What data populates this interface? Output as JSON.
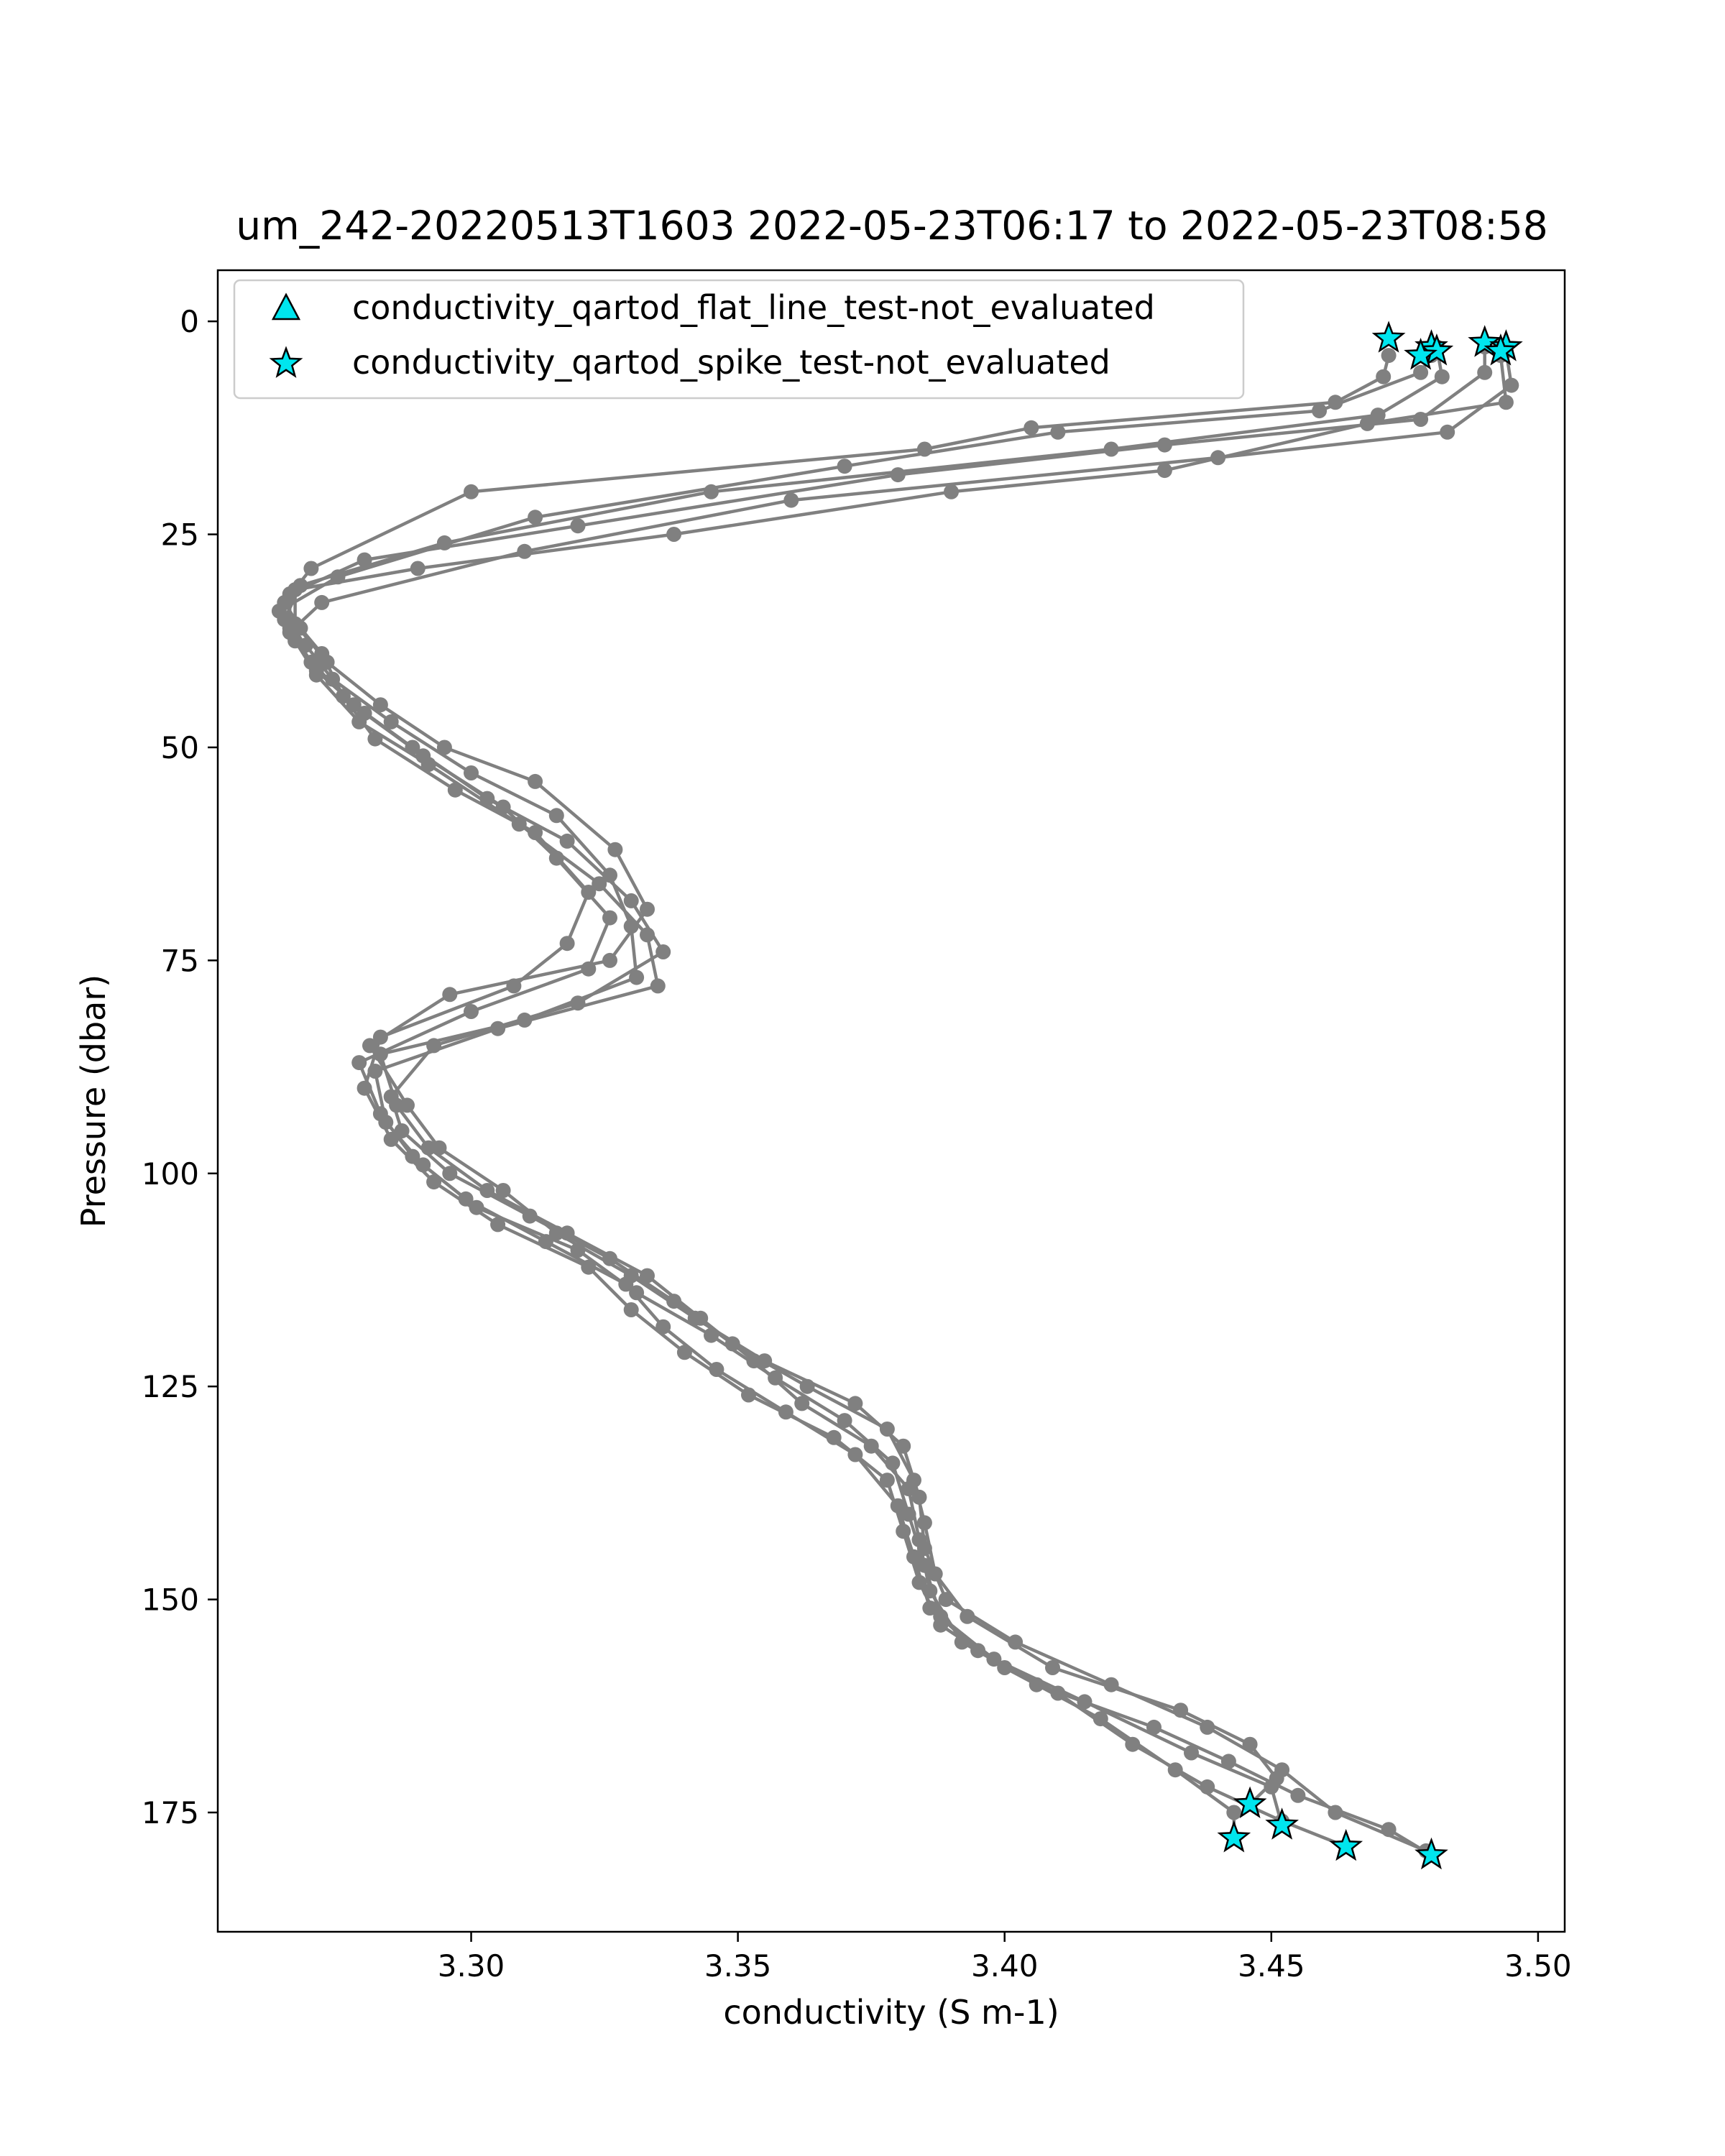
{
  "chart_data": {
    "type": "scatter",
    "title": "um_242-20220513T1603 2022-05-23T06:17 to 2022-05-23T08:58",
    "xlabel": "conductivity (S m-1)",
    "ylabel": "Pressure (dbar)",
    "xlim": [
      3.2525,
      3.505
    ],
    "ylim": [
      189,
      -6
    ],
    "y_inverted": true,
    "grid": false,
    "legend_position": "top-left",
    "xticks": [
      3.3,
      3.35,
      3.4,
      3.45,
      3.5
    ],
    "xtick_labels": [
      "3.30",
      "3.35",
      "3.40",
      "3.45",
      "3.50"
    ],
    "yticks": [
      0,
      25,
      50,
      75,
      100,
      125,
      150,
      175
    ],
    "ytick_labels": [
      "0",
      "25",
      "50",
      "75",
      "100",
      "125",
      "150",
      "175"
    ],
    "profile_color": "#808080",
    "marker_color": "#00e5ee",
    "legend": [
      {
        "label": "conductivity_qartod_flat_line_test-not_evaluated",
        "marker": "triangle"
      },
      {
        "label": "conductivity_qartod_spike_test-not_evaluated",
        "marker": "star"
      }
    ],
    "series": [
      {
        "points": [
          [
            3.472,
            4.0
          ],
          [
            3.471,
            6.5
          ],
          [
            3.462,
            9.5
          ],
          [
            3.405,
            12.5
          ],
          [
            3.385,
            15.0
          ],
          [
            3.3,
            20.0
          ],
          [
            3.27,
            29.0
          ],
          [
            3.265,
            33.0
          ],
          [
            3.268,
            36.0
          ],
          [
            3.272,
            39.0
          ],
          [
            3.276,
            44.0
          ],
          [
            3.282,
            49.0
          ],
          [
            3.297,
            55.0
          ],
          [
            3.312,
            60.0
          ],
          [
            3.322,
            67.0
          ],
          [
            3.318,
            73.0
          ],
          [
            3.308,
            78.0
          ],
          [
            3.283,
            84.0
          ],
          [
            3.28,
            90.0
          ],
          [
            3.285,
            96.0
          ],
          [
            3.293,
            101.0
          ],
          [
            3.305,
            106.0
          ],
          [
            3.322,
            111.0
          ],
          [
            3.33,
            116.0
          ],
          [
            3.34,
            121.0
          ],
          [
            3.352,
            126.0
          ],
          [
            3.368,
            131.0
          ],
          [
            3.378,
            136.0
          ],
          [
            3.381,
            142.0
          ],
          [
            3.384,
            148.0
          ],
          [
            3.388,
            153.0
          ],
          [
            3.4,
            158.0
          ],
          [
            3.418,
            164.0
          ],
          [
            3.432,
            170.0
          ],
          [
            3.443,
            175.0
          ],
          [
            3.443,
            178.0
          ]
        ]
      },
      {
        "points": [
          [
            3.48,
            4.0
          ],
          [
            3.478,
            6.0
          ],
          [
            3.459,
            10.5
          ],
          [
            3.41,
            13.0
          ],
          [
            3.37,
            17.0
          ],
          [
            3.312,
            23.0
          ],
          [
            3.275,
            30.0
          ],
          [
            3.264,
            34.0
          ],
          [
            3.267,
            37.5
          ],
          [
            3.271,
            41.0
          ],
          [
            3.28,
            46.0
          ],
          [
            3.291,
            51.0
          ],
          [
            3.306,
            57.0
          ],
          [
            3.316,
            63.0
          ],
          [
            3.326,
            70.0
          ],
          [
            3.322,
            76.0
          ],
          [
            3.3,
            81.0
          ],
          [
            3.279,
            87.0
          ],
          [
            3.283,
            93.0
          ],
          [
            3.289,
            98.0
          ],
          [
            3.299,
            103.0
          ],
          [
            3.314,
            108.0
          ],
          [
            3.329,
            113.0
          ],
          [
            3.336,
            118.0
          ],
          [
            3.346,
            123.0
          ],
          [
            3.359,
            128.0
          ],
          [
            3.372,
            133.0
          ],
          [
            3.38,
            139.0
          ],
          [
            3.383,
            145.0
          ],
          [
            3.386,
            151.0
          ],
          [
            3.395,
            156.0
          ],
          [
            3.41,
            161.0
          ],
          [
            3.424,
            167.0
          ],
          [
            3.438,
            172.0
          ],
          [
            3.452,
            176.0
          ],
          [
            3.464,
            179.0
          ]
        ]
      },
      {
        "points": [
          [
            3.481,
            3.0
          ],
          [
            3.482,
            6.5
          ],
          [
            3.47,
            11.0
          ],
          [
            3.42,
            15.0
          ],
          [
            3.345,
            20.0
          ],
          [
            3.295,
            26.0
          ],
          [
            3.268,
            31.0
          ],
          [
            3.265,
            35.0
          ],
          [
            3.269,
            38.0
          ],
          [
            3.274,
            42.0
          ],
          [
            3.285,
            47.0
          ],
          [
            3.3,
            53.0
          ],
          [
            3.316,
            58.0
          ],
          [
            3.326,
            65.0
          ],
          [
            3.33,
            71.0
          ],
          [
            3.331,
            77.0
          ],
          [
            3.31,
            82.0
          ],
          [
            3.283,
            86.0
          ],
          [
            3.286,
            92.0
          ],
          [
            3.292,
            97.0
          ],
          [
            3.303,
            102.0
          ],
          [
            3.318,
            107.0
          ],
          [
            3.333,
            112.0
          ],
          [
            3.343,
            117.0
          ],
          [
            3.353,
            122.0
          ],
          [
            3.362,
            127.0
          ],
          [
            3.375,
            132.0
          ],
          [
            3.382,
            137.0
          ],
          [
            3.384,
            143.0
          ],
          [
            3.386,
            149.0
          ],
          [
            3.392,
            155.0
          ],
          [
            3.406,
            160.0
          ],
          [
            3.428,
            165.0
          ],
          [
            3.442,
            169.0
          ],
          [
            3.455,
            173.0
          ],
          [
            3.472,
            177.0
          ],
          [
            3.48,
            180.0
          ]
        ]
      },
      {
        "points": [
          [
            3.49,
            3.0
          ],
          [
            3.49,
            6.0
          ],
          [
            3.478,
            11.5
          ],
          [
            3.43,
            14.5
          ],
          [
            3.38,
            18.0
          ],
          [
            3.32,
            24.0
          ],
          [
            3.28,
            28.0
          ],
          [
            3.266,
            32.0
          ],
          [
            3.266,
            36.0
          ],
          [
            3.27,
            40.0
          ],
          [
            3.278,
            45.0
          ],
          [
            3.289,
            50.0
          ],
          [
            3.303,
            56.0
          ],
          [
            3.318,
            61.0
          ],
          [
            3.33,
            68.0
          ],
          [
            3.336,
            74.0
          ],
          [
            3.32,
            80.0
          ],
          [
            3.293,
            85.0
          ],
          [
            3.285,
            91.0
          ],
          [
            3.287,
            95.0
          ],
          [
            3.296,
            100.0
          ],
          [
            3.311,
            105.0
          ],
          [
            3.326,
            110.0
          ],
          [
            3.338,
            115.0
          ],
          [
            3.349,
            120.0
          ],
          [
            3.363,
            125.0
          ],
          [
            3.378,
            130.0
          ],
          [
            3.383,
            136.0
          ],
          [
            3.385,
            141.0
          ],
          [
            3.387,
            147.0
          ],
          [
            3.393,
            152.0
          ],
          [
            3.409,
            158.0
          ],
          [
            3.433,
            163.0
          ],
          [
            3.446,
            167.0
          ],
          [
            3.451,
            171.0
          ],
          [
            3.446,
            174.0
          ]
        ]
      },
      {
        "points": [
          [
            3.494,
            3.5
          ],
          [
            3.495,
            7.5
          ],
          [
            3.483,
            13.0
          ],
          [
            3.44,
            16.0
          ],
          [
            3.36,
            21.0
          ],
          [
            3.31,
            27.0
          ],
          [
            3.272,
            33.0
          ],
          [
            3.266,
            36.5
          ],
          [
            3.271,
            41.5
          ],
          [
            3.279,
            47.0
          ],
          [
            3.292,
            52.0
          ],
          [
            3.309,
            59.0
          ],
          [
            3.324,
            66.0
          ],
          [
            3.333,
            72.0
          ],
          [
            3.335,
            78.0
          ],
          [
            3.305,
            83.0
          ],
          [
            3.282,
            88.0
          ],
          [
            3.284,
            94.0
          ],
          [
            3.291,
            99.0
          ],
          [
            3.301,
            104.0
          ],
          [
            3.32,
            109.0
          ],
          [
            3.331,
            114.0
          ],
          [
            3.345,
            119.0
          ],
          [
            3.357,
            124.0
          ],
          [
            3.37,
            129.0
          ],
          [
            3.379,
            134.0
          ],
          [
            3.382,
            140.0
          ],
          [
            3.385,
            146.0
          ],
          [
            3.388,
            152.0
          ],
          [
            3.398,
            157.0
          ],
          [
            3.415,
            162.0
          ],
          [
            3.435,
            168.0
          ],
          [
            3.45,
            172.0
          ],
          [
            3.452,
            176.5
          ]
        ]
      },
      {
        "points": [
          [
            3.493,
            4.0
          ],
          [
            3.494,
            9.5
          ],
          [
            3.468,
            12.0
          ],
          [
            3.43,
            17.5
          ],
          [
            3.39,
            20.0
          ],
          [
            3.338,
            25.0
          ],
          [
            3.29,
            29.0
          ],
          [
            3.267,
            31.5
          ],
          [
            3.267,
            35.5
          ],
          [
            3.273,
            40.0
          ],
          [
            3.283,
            45.0
          ],
          [
            3.295,
            50.0
          ],
          [
            3.312,
            54.0
          ],
          [
            3.327,
            62.0
          ],
          [
            3.333,
            69.0
          ],
          [
            3.326,
            75.0
          ],
          [
            3.296,
            79.0
          ],
          [
            3.281,
            85.0
          ],
          [
            3.288,
            92.0
          ],
          [
            3.294,
            97.0
          ],
          [
            3.306,
            102.0
          ],
          [
            3.316,
            107.0
          ],
          [
            3.33,
            112.0
          ],
          [
            3.342,
            117.0
          ],
          [
            3.355,
            122.0
          ],
          [
            3.372,
            127.0
          ],
          [
            3.381,
            132.0
          ],
          [
            3.384,
            138.0
          ],
          [
            3.385,
            144.0
          ],
          [
            3.389,
            150.0
          ],
          [
            3.402,
            155.0
          ],
          [
            3.42,
            160.0
          ],
          [
            3.438,
            165.0
          ],
          [
            3.452,
            170.0
          ],
          [
            3.462,
            175.0
          ],
          [
            3.479,
            179.5
          ]
        ]
      }
    ],
    "spike_markers": [
      [
        3.472,
        2.0
      ],
      [
        3.48,
        3.0
      ],
      [
        3.481,
        3.5
      ],
      [
        3.478,
        4.0
      ],
      [
        3.49,
        2.5
      ],
      [
        3.494,
        3.0
      ],
      [
        3.493,
        3.5
      ],
      [
        3.446,
        174.0
      ],
      [
        3.452,
        176.5
      ],
      [
        3.443,
        178.0
      ],
      [
        3.464,
        179.0
      ],
      [
        3.48,
        180.0
      ]
    ]
  }
}
